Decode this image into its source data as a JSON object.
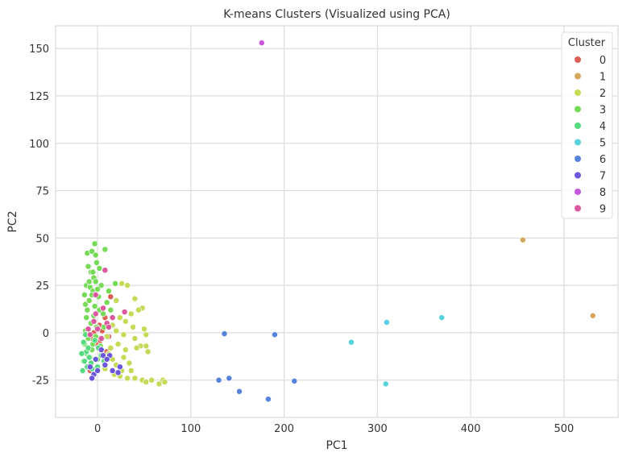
{
  "chart_data": {
    "type": "scatter",
    "title": "K-means Clusters (Visualized using PCA)",
    "xlabel": "PC1",
    "ylabel": "PC2",
    "xlim": [
      -45,
      558
    ],
    "ylim": [
      -44.7,
      162
    ],
    "xticks": [
      0,
      100,
      200,
      300,
      400,
      500
    ],
    "yticks": [
      -25,
      0,
      25,
      50,
      75,
      100,
      125,
      150
    ],
    "grid": true,
    "legend": {
      "title": "Cluster",
      "placement": "top-right"
    },
    "series": [
      {
        "name": "0",
        "color": "#db5f57",
        "points": [
          [
            14,
            19
          ],
          [
            -3,
            14
          ],
          [
            8,
            8
          ],
          [
            2,
            4
          ],
          [
            -6,
            -3
          ],
          [
            12,
            -2
          ],
          [
            5,
            1
          ],
          [
            -1,
            -6
          ],
          [
            -8,
            -20
          ],
          [
            10,
            -10
          ],
          [
            -4,
            0
          ],
          [
            3,
            -4
          ]
        ]
      },
      {
        "name": "1",
        "color": "#d4a85a",
        "points": [
          [
            456,
            49
          ],
          [
            531,
            9
          ]
        ]
      },
      {
        "name": "2",
        "color": "#c3db57",
        "points": [
          [
            26,
            26
          ],
          [
            32,
            25
          ],
          [
            20,
            17
          ],
          [
            40,
            18
          ],
          [
            48,
            13
          ],
          [
            44,
            12
          ],
          [
            36,
            10
          ],
          [
            24,
            8
          ],
          [
            30,
            6
          ],
          [
            38,
            3
          ],
          [
            16,
            4
          ],
          [
            20,
            1
          ],
          [
            28,
            -1
          ],
          [
            50,
            2
          ],
          [
            52,
            -1
          ],
          [
            40,
            -3
          ],
          [
            46,
            -7
          ],
          [
            52,
            -7
          ],
          [
            54,
            -10
          ],
          [
            30,
            -9
          ],
          [
            22,
            -6
          ],
          [
            14,
            -8
          ],
          [
            28,
            -13
          ],
          [
            34,
            -16
          ],
          [
            20,
            -17
          ],
          [
            26,
            -20
          ],
          [
            32,
            -24
          ],
          [
            40,
            -24
          ],
          [
            48,
            -25
          ],
          [
            52,
            -26
          ],
          [
            58,
            -25
          ],
          [
            66,
            -27
          ],
          [
            70,
            -25
          ],
          [
            72,
            -26
          ],
          [
            18,
            -22
          ],
          [
            24,
            -23
          ],
          [
            10,
            -2
          ],
          [
            12,
            -11
          ],
          [
            36,
            -20
          ],
          [
            42,
            -8
          ],
          [
            16,
            -14
          ],
          [
            8,
            -19
          ]
        ]
      },
      {
        "name": "3",
        "color": "#75db57",
        "points": [
          [
            -3,
            47
          ],
          [
            -11,
            42
          ],
          [
            -6,
            43
          ],
          [
            8,
            44
          ],
          [
            -2,
            41
          ],
          [
            -1,
            37
          ],
          [
            2,
            34
          ],
          [
            -10,
            35
          ],
          [
            -7,
            32
          ],
          [
            -4,
            29
          ],
          [
            -2,
            27
          ],
          [
            4,
            25
          ],
          [
            -12,
            25
          ],
          [
            -8,
            24
          ],
          [
            -14,
            20
          ],
          [
            -5,
            22
          ],
          [
            0,
            23
          ],
          [
            12,
            22
          ],
          [
            19,
            26
          ],
          [
            -13,
            15
          ],
          [
            -9,
            17
          ],
          [
            -3,
            14
          ],
          [
            2,
            12
          ],
          [
            6,
            10
          ],
          [
            -12,
            8
          ],
          [
            -7,
            5
          ],
          [
            -1,
            3
          ],
          [
            -13,
            1
          ],
          [
            -10,
            -3
          ],
          [
            -5,
            -6
          ],
          [
            3,
            -7
          ],
          [
            -12,
            -11
          ],
          [
            -8,
            -13
          ],
          [
            0,
            -14
          ],
          [
            -14,
            -6
          ],
          [
            -6,
            20
          ],
          [
            -11,
            12
          ],
          [
            -4,
            9
          ],
          [
            10,
            16
          ],
          [
            14,
            12
          ],
          [
            -9,
            27
          ],
          [
            -5,
            32
          ],
          [
            1,
            19
          ],
          [
            7,
            3
          ],
          [
            -2,
            -2
          ],
          [
            -15,
            -15
          ],
          [
            -6,
            -9
          ],
          [
            5,
            -3
          ]
        ]
      },
      {
        "name": "4",
        "color": "#57db80",
        "points": [
          [
            -16,
            -20
          ],
          [
            -14,
            -15
          ],
          [
            -12,
            -10
          ],
          [
            -15,
            -5
          ],
          [
            -10,
            -8
          ],
          [
            -7,
            -16
          ],
          [
            -4,
            -22
          ],
          [
            0,
            -18
          ],
          [
            4,
            -12
          ],
          [
            -3,
            -4
          ],
          [
            -13,
            -1
          ],
          [
            -9,
            -13
          ],
          [
            -17,
            -11
          ],
          [
            1,
            -8
          ],
          [
            -6,
            -19
          ],
          [
            7,
            -15
          ],
          [
            -11,
            -18
          ]
        ]
      },
      {
        "name": "5",
        "color": "#57d3db",
        "points": [
          [
            310,
            5.5
          ],
          [
            369,
            8
          ],
          [
            272,
            -5
          ],
          [
            309,
            -27
          ]
        ]
      },
      {
        "name": "6",
        "color": "#5784db",
        "points": [
          [
            136,
            -0.5
          ],
          [
            190,
            -1
          ],
          [
            130,
            -25
          ],
          [
            141,
            -24
          ],
          [
            152,
            -31
          ],
          [
            183,
            -35
          ],
          [
            211,
            -25.5
          ]
        ]
      },
      {
        "name": "7",
        "color": "#6c57db",
        "points": [
          [
            4,
            -9
          ],
          [
            -8,
            -18
          ],
          [
            -4,
            -22
          ],
          [
            0,
            -20
          ],
          [
            6,
            -12
          ],
          [
            13,
            -12
          ],
          [
            24,
            -18
          ],
          [
            22,
            -21
          ],
          [
            10,
            -14
          ],
          [
            -2,
            -14
          ],
          [
            8,
            -17
          ],
          [
            -6,
            -24
          ],
          [
            16,
            -20
          ]
        ]
      },
      {
        "name": "8",
        "color": "#c957db",
        "points": [
          [
            176,
            153
          ]
        ]
      },
      {
        "name": "9",
        "color": "#db579e",
        "points": [
          [
            8,
            33
          ],
          [
            -2,
            20
          ],
          [
            29,
            11
          ],
          [
            6,
            13
          ],
          [
            -4,
            6
          ],
          [
            10,
            5
          ],
          [
            0,
            2
          ],
          [
            -8,
            -1
          ],
          [
            4,
            -3
          ],
          [
            -2,
            10
          ],
          [
            12,
            3
          ],
          [
            -10,
            2
          ],
          [
            16,
            8
          ]
        ]
      }
    ]
  }
}
